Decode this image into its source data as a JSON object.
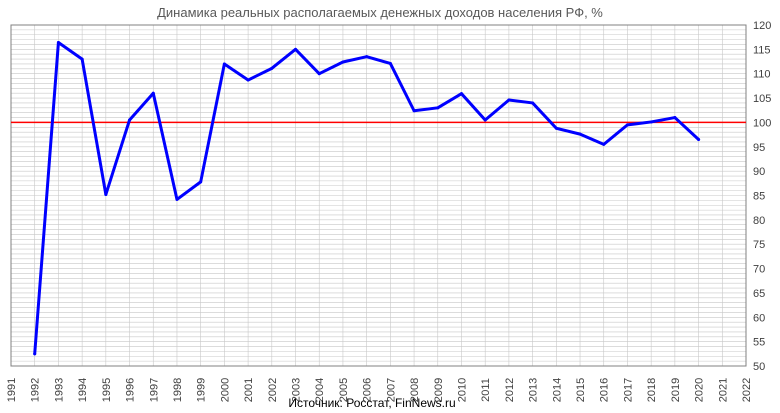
{
  "chart_data": {
    "type": "line",
    "title": "Динамика реальных располагаемых денежных доходов населения РФ, %",
    "source": "Источник: Росстат, FinNews.ru",
    "x_ticks": [
      "1991",
      "1992",
      "1993",
      "1994",
      "1995",
      "1996",
      "1997",
      "1998",
      "1999",
      "2000",
      "2001",
      "2002",
      "2003",
      "2004",
      "2005",
      "2006",
      "2007",
      "2008",
      "2009",
      "2010",
      "2011",
      "2012",
      "2013",
      "2014",
      "2015",
      "2016",
      "2017",
      "2018",
      "2019",
      "2020",
      "2021",
      "2022"
    ],
    "y_ticks": [
      "50",
      "55",
      "60",
      "65",
      "70",
      "75",
      "80",
      "85",
      "90",
      "95",
      "100",
      "105",
      "110",
      "115",
      "120"
    ],
    "ylim": [
      50,
      120
    ],
    "xlim": [
      1991,
      2022
    ],
    "y_axis_position": "right",
    "grid": true,
    "reference_line": {
      "value": 100,
      "color": "#ff0000"
    },
    "series": [
      {
        "color": "#0000ff",
        "x": [
          1992,
          1993,
          1994,
          1995,
          1996,
          1997,
          1998,
          1999,
          2000,
          2001,
          2002,
          2003,
          2004,
          2005,
          2006,
          2007,
          2008,
          2009,
          2010,
          2011,
          2012,
          2013,
          2014,
          2015,
          2016,
          2017,
          2018,
          2019,
          2020
        ],
        "values": [
          52.5,
          116.4,
          113.0,
          85.2,
          100.5,
          106.0,
          84.2,
          87.8,
          112.0,
          108.7,
          111.1,
          115.0,
          110.0,
          112.4,
          113.5,
          112.1,
          102.4,
          103.0,
          105.9,
          100.5,
          104.6,
          104.0,
          98.8,
          97.6,
          95.5,
          99.5,
          100.1,
          101.0,
          96.5
        ]
      }
    ]
  }
}
